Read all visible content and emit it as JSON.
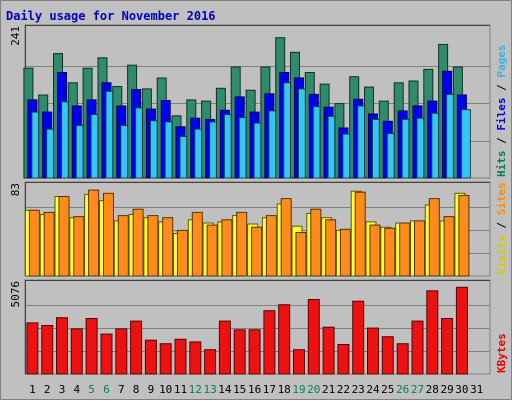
{
  "chart_data": {
    "type": "bar",
    "title": "Daily usage for November 2016",
    "categories": [
      "1",
      "2",
      "3",
      "4",
      "5",
      "6",
      "7",
      "8",
      "9",
      "10",
      "11",
      "12",
      "13",
      "14",
      "15",
      "16",
      "17",
      "18",
      "19",
      "20",
      "21",
      "22",
      "23",
      "24",
      "25",
      "26",
      "27",
      "28",
      "29",
      "30",
      "31"
    ],
    "weekend_days": [
      "5",
      "6",
      "12",
      "13",
      "19",
      "20",
      "26",
      "27"
    ],
    "panels": [
      {
        "id": "hits-files-pages",
        "ymax": 241,
        "max_label": "241",
        "right_labels": [
          {
            "text": "Hits",
            "color": "#007f4f"
          },
          {
            "text": " / ",
            "color": "#000000"
          },
          {
            "text": "Files",
            "color": "#0000e6"
          },
          {
            "text": " / ",
            "color": "#000000"
          },
          {
            "text": "Pages",
            "color": "#33b5e8"
          }
        ],
        "series": [
          {
            "name": "Hits",
            "color": "#2e8b6b",
            "values": [
              180,
              136,
              204,
              156,
              180,
              197,
              150,
              185,
              146,
              164,
              102,
              128,
              126,
              147,
              182,
              144,
              182,
              230,
              206,
              173,
              154,
              122,
              166,
              149,
              126,
              156,
              159,
              178,
              219,
              182,
              null
            ]
          },
          {
            "name": "Files",
            "color": "#0000ee",
            "values": [
              128,
              108,
              173,
              118,
              128,
              156,
              118,
              145,
              113,
              127,
              84,
              98,
              96,
              111,
              133,
              108,
              138,
              173,
              164,
              137,
              116,
              82,
              129,
              105,
              93,
              110,
              118,
              126,
              175,
              136,
              null
            ]
          },
          {
            "name": "Pages",
            "color": "#33c7f5",
            "values": [
              108,
              80,
              125,
              86,
              104,
              142,
              86,
              115,
              94,
              92,
              68,
              80,
              92,
              104,
              99,
              90,
              110,
              156,
              146,
              117,
              101,
              72,
              118,
              96,
              73,
              96,
              98,
              106,
              137,
              112,
              null
            ]
          }
        ]
      },
      {
        "id": "visits-sites",
        "ymax": 83,
        "max_label": "83",
        "right_labels": [
          {
            "text": "Visits",
            "color": "#d4c800"
          },
          {
            "text": " / ",
            "color": "#000000"
          },
          {
            "text": "Sites",
            "color": "#ff8c00"
          }
        ],
        "series": [
          {
            "name": "Visits",
            "color": "#ffff30",
            "values": [
              62,
              58,
              75,
              55,
              77,
              71,
              52,
              58,
              55,
              51,
              40,
              53,
              50,
              51,
              57,
              49,
              55,
              68,
              47,
              59,
              55,
              43,
              80,
              51,
              46,
              50,
              52,
              67,
              52,
              78,
              null
            ]
          },
          {
            "name": "Sites",
            "color": "#ff8c1a",
            "values": [
              62,
              60,
              75,
              56,
              81,
              78,
              57,
              63,
              57,
              55,
              43,
              60,
              48,
              53,
              60,
              46,
              57,
              73,
              41,
              63,
              53,
              44,
              79,
              48,
              45,
              50,
              52,
              73,
              56,
              76,
              null
            ]
          }
        ]
      },
      {
        "id": "kbytes",
        "ymax": 5076,
        "max_label": "5076",
        "right_labels": [
          {
            "text": "KBytes",
            "color": "#ee0000"
          }
        ],
        "series": [
          {
            "name": "KBytes",
            "color": "#ee1111",
            "values": [
              2950,
              2800,
              3250,
              2600,
              3200,
              2300,
              2600,
              3050,
              1950,
              1750,
              2000,
              1850,
              1400,
              3050,
              2550,
              2550,
              3650,
              4000,
              1400,
              4300,
              2700,
              1700,
              4200,
              2650,
              2150,
              1750,
              3050,
              4800,
              3200,
              5000,
              null
            ]
          }
        ]
      }
    ]
  }
}
